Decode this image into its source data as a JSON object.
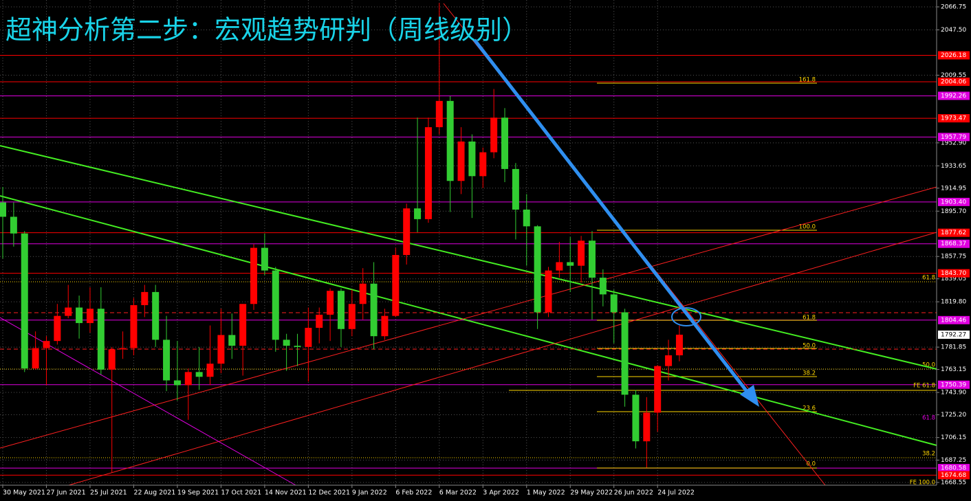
{
  "chart_data": {
    "type": "candlestick",
    "title": "超神分析第二步：宏观趋势研判（周线级别）",
    "categories": [
      "30 May 2021",
      null,
      null,
      null,
      "27 Jun 2021",
      null,
      null,
      null,
      "25 Jul 2021",
      null,
      null,
      null,
      "22 Aug 2021",
      null,
      null,
      null,
      "19 Sep 2021",
      null,
      null,
      null,
      "17 Oct 2021",
      null,
      null,
      null,
      "14 Nov 2021",
      null,
      null,
      null,
      "12 Dec 2021",
      null,
      null,
      null,
      "9 Jan 2022",
      null,
      null,
      null,
      "6 Feb 2022",
      null,
      null,
      null,
      "6 Mar 2022",
      null,
      null,
      null,
      "3 Apr 2022",
      null,
      null,
      null,
      "1 May 2022",
      null,
      null,
      null,
      "29 May 2022",
      null,
      null,
      null,
      "26 Jun 2022",
      null,
      null,
      null,
      "24 Jul 2022",
      null,
      null
    ],
    "open": [
      1903,
      1891,
      1877,
      1764,
      1781,
      1787,
      1808,
      1815,
      1802,
      1814,
      1763,
      1780,
      1781,
      1817,
      1828,
      1788,
      1754,
      1750,
      1761,
      1757,
      1768,
      1792,
      1783,
      1818,
      1865,
      1846,
      1788,
      1783,
      1782,
      1798,
      1809,
      1829,
      1797,
      1818,
      1835,
      1791,
      1808,
      1859,
      1898,
      1889,
      1966,
      1988,
      1921,
      1954,
      1925,
      1945,
      1974,
      1931,
      1897,
      1883,
      1811,
      1846,
      1853,
      1850,
      1871,
      1840,
      1826,
      1811,
      1742,
      1703,
      1727,
      1766,
      1775
    ],
    "high": [
      1916,
      1903,
      1879,
      1795,
      1791,
      1818,
      1834,
      1825,
      1832,
      1832,
      1782,
      1795,
      1823,
      1834,
      1834,
      1808,
      1787,
      1764,
      1782,
      1800,
      1814,
      1810,
      1818,
      1868,
      1877,
      1849,
      1793,
      1793,
      1815,
      1815,
      1831,
      1831,
      1830,
      1848,
      1853,
      1814,
      1865,
      1902,
      1974,
      1974,
      2070,
      1992,
      1966,
      1960,
      1949,
      1998,
      1982,
      1936,
      1910,
      1884,
      1849,
      1870,
      1874,
      1875,
      1879,
      1847,
      1830,
      1814,
      1746,
      1740,
      1767,
      1788,
      1800
    ],
    "low": [
      1856,
      1866,
      1761,
      1763,
      1750,
      1784,
      1806,
      1789,
      1794,
      1759,
      1677,
      1772,
      1775,
      1807,
      1782,
      1745,
      1737,
      1721,
      1746,
      1750,
      1760,
      1772,
      1758,
      1813,
      1842,
      1778,
      1762,
      1766,
      1753,
      1785,
      1787,
      1782,
      1791,
      1805,
      1780,
      1788,
      1807,
      1851,
      1878,
      1886,
      1960,
      1895,
      1910,
      1890,
      1915,
      1940,
      1920,
      1872,
      1850,
      1797,
      1807,
      1840,
      1828,
      1836,
      1805,
      1816,
      1785,
      1732,
      1697,
      1681,
      1711,
      1754,
      1770
    ],
    "close": [
      1891,
      1877,
      1764,
      1781,
      1787,
      1808,
      1815,
      1802,
      1814,
      1763,
      1780,
      1781,
      1817,
      1828,
      1788,
      1754,
      1750,
      1761,
      1757,
      1768,
      1792,
      1783,
      1818,
      1865,
      1846,
      1788,
      1783,
      1782,
      1798,
      1809,
      1829,
      1797,
      1818,
      1835,
      1791,
      1808,
      1859,
      1898,
      1889,
      1966,
      1988,
      1921,
      1954,
      1925,
      1945,
      1974,
      1931,
      1897,
      1883,
      1811,
      1846,
      1853,
      1850,
      1871,
      1840,
      1826,
      1811,
      1742,
      1703,
      1727,
      1766,
      1775,
      1792.27
    ],
    "up_color": "#ff0000",
    "down_color": "#32cd32",
    "ylim": [
      1666.25,
      2072.5
    ],
    "yticks": [
      2066.75,
      {
        "value": 2047.5,
        "label": "2047.50"
      },
      2009.55,
      {
        "value": 1952.9,
        "label": "1952.90"
      },
      1933.65,
      1914.95,
      {
        "value": 1895.7,
        "label": "1895.70"
      },
      1857.75,
      1839.05,
      {
        "value": 1819.8,
        "label": "1819.80"
      },
      1781.85,
      1763.15,
      {
        "value": 1743.9,
        "label": "1743.90"
      },
      {
        "value": 1725.2,
        "label": "1725.20"
      },
      1706.15,
      1687.25,
      1668.55
    ],
    "grid": true,
    "levels": [
      {
        "value": 2026.18,
        "color": "#ff0000"
      },
      {
        "value": 2004.06,
        "color": "#ff0000"
      },
      {
        "value": 1992.26,
        "color": "#e000e0"
      },
      {
        "value": 1973.47,
        "color": "#ff0000"
      },
      {
        "value": 1957.79,
        "color": "#e000e0"
      },
      {
        "value": 1903.4,
        "label": "1903.40",
        "color": "#e000e0"
      },
      {
        "value": 1877.62,
        "color": "#ff0000"
      },
      {
        "value": 1868.37,
        "color": "#e000e0"
      },
      {
        "value": 1843.7,
        "label": "1843.70",
        "color": "#ff0000"
      },
      {
        "value": 1804.46,
        "color": "#e000e0"
      },
      {
        "value": 1750.39,
        "color": "#e000e0"
      },
      {
        "value": 1680.58,
        "color": "#e000e0"
      },
      {
        "value": 1674.68,
        "color": "#ff0000"
      }
    ],
    "current": 1792.27,
    "fib_labels": [
      "161.8",
      "100.0",
      "61.8",
      "50.0",
      "38.2",
      "23.6",
      "0.0",
      "61.8",
      "50.0",
      "FE 61.8",
      "61.8",
      "38.2",
      "FE 100.0"
    ]
  }
}
